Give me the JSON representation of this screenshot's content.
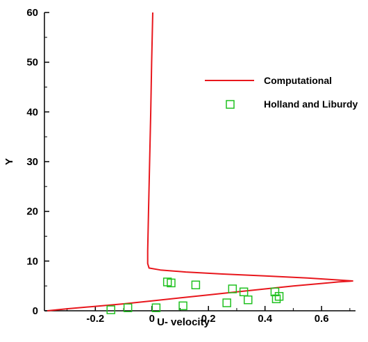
{
  "chart_data": {
    "type": "line",
    "title": "",
    "xlabel": "U- velocity",
    "ylabel": "Y",
    "xlim": [
      -0.38,
      0.72
    ],
    "ylim": [
      0,
      60
    ],
    "x_ticks": [
      -0.2,
      0,
      0.2,
      0.4,
      0.6
    ],
    "x_tick_labels": [
      "-0.2",
      "0",
      "0.2",
      "0.4",
      "0.6"
    ],
    "y_ticks": [
      0,
      10,
      20,
      30,
      40,
      50,
      60
    ],
    "y_tick_labels": [
      "0",
      "10",
      "20",
      "30",
      "40",
      "50",
      "60"
    ],
    "grid": false,
    "legend_position": "top-right",
    "series": [
      {
        "name": "Computational",
        "kind": "line",
        "color": "#e8161c",
        "points": [
          [
            -0.37,
            0.0
          ],
          [
            -0.3,
            0.4
          ],
          [
            -0.2,
            0.9
          ],
          [
            -0.1,
            1.4
          ],
          [
            0.0,
            2.0
          ],
          [
            0.1,
            2.6
          ],
          [
            0.2,
            3.2
          ],
          [
            0.3,
            3.8
          ],
          [
            0.4,
            4.4
          ],
          [
            0.5,
            5.0
          ],
          [
            0.6,
            5.5
          ],
          [
            0.66,
            5.8
          ],
          [
            0.7,
            5.95
          ],
          [
            0.71,
            6.0
          ],
          [
            0.66,
            6.2
          ],
          [
            0.55,
            6.6
          ],
          [
            0.4,
            7.0
          ],
          [
            0.25,
            7.4
          ],
          [
            0.12,
            7.8
          ],
          [
            0.03,
            8.2
          ],
          [
            -0.01,
            8.6
          ],
          [
            -0.015,
            9.5
          ],
          [
            -0.015,
            12.0
          ],
          [
            -0.012,
            20.0
          ],
          [
            -0.008,
            30.0
          ],
          [
            -0.004,
            40.0
          ],
          [
            -0.001,
            50.0
          ],
          [
            0.003,
            60.0
          ]
        ]
      },
      {
        "name": "Holland and Liburdy",
        "kind": "scatter",
        "marker": "square-open",
        "color": "#1fc11f",
        "points": [
          [
            -0.145,
            0.2
          ],
          [
            -0.085,
            0.6
          ],
          [
            0.015,
            0.6
          ],
          [
            0.11,
            1.0
          ],
          [
            0.055,
            5.8
          ],
          [
            0.068,
            5.6
          ],
          [
            0.155,
            5.2
          ],
          [
            0.265,
            1.6
          ],
          [
            0.285,
            4.4
          ],
          [
            0.325,
            3.8
          ],
          [
            0.34,
            2.2
          ],
          [
            0.435,
            3.8
          ],
          [
            0.44,
            2.4
          ],
          [
            0.45,
            2.9
          ]
        ]
      }
    ]
  }
}
